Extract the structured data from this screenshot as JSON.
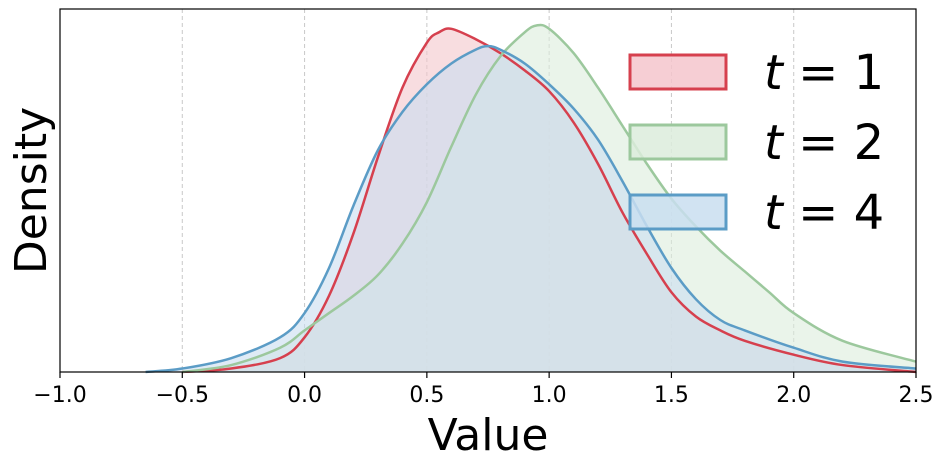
{
  "chart_data": {
    "type": "area",
    "title": "",
    "xlabel": "Value",
    "ylabel": "Density",
    "xlim": [
      -1.0,
      2.5
    ],
    "ylim": [
      0,
      1
    ],
    "x_ticks": [
      -1.0,
      -0.5,
      0.0,
      0.5,
      1.0,
      1.5,
      2.0,
      2.5
    ],
    "x_tick_labels": [
      "−1.0",
      "−0.5",
      "0.0",
      "0.5",
      "1.0",
      "1.5",
      "2.0",
      "2.5"
    ],
    "y_ticks_shown": false,
    "grid": "vertical dashed",
    "legend_position": "upper-right",
    "series": [
      {
        "name": "t = 1",
        "legend_var": "t",
        "legend_val": "1",
        "color": "#d6404e",
        "fill": "#f4c6cc",
        "x": [
          -0.5,
          -0.3,
          -0.1,
          0.0,
          0.1,
          0.2,
          0.3,
          0.4,
          0.5,
          0.55,
          0.6,
          0.7,
          0.8,
          0.9,
          1.0,
          1.1,
          1.2,
          1.3,
          1.4,
          1.5,
          1.6,
          1.7,
          1.8,
          2.0,
          2.2,
          2.5
        ],
        "y": [
          0.0,
          0.01,
          0.04,
          0.1,
          0.22,
          0.4,
          0.62,
          0.82,
          0.95,
          0.98,
          0.99,
          0.96,
          0.92,
          0.87,
          0.81,
          0.72,
          0.6,
          0.46,
          0.34,
          0.23,
          0.16,
          0.12,
          0.09,
          0.05,
          0.02,
          0.0
        ]
      },
      {
        "name": "t = 2",
        "legend_var": "t",
        "legend_val": "2",
        "color": "#9cc89d",
        "fill": "#dcecdc",
        "x": [
          -0.5,
          -0.3,
          -0.1,
          0.0,
          0.1,
          0.2,
          0.3,
          0.4,
          0.5,
          0.6,
          0.7,
          0.8,
          0.9,
          0.95,
          1.0,
          1.1,
          1.2,
          1.3,
          1.4,
          1.5,
          1.6,
          1.7,
          1.8,
          1.9,
          2.0,
          2.2,
          2.5
        ],
        "y": [
          0.0,
          0.02,
          0.07,
          0.12,
          0.17,
          0.22,
          0.28,
          0.37,
          0.49,
          0.65,
          0.8,
          0.91,
          0.98,
          1.0,
          0.99,
          0.92,
          0.82,
          0.71,
          0.6,
          0.5,
          0.42,
          0.35,
          0.29,
          0.23,
          0.17,
          0.09,
          0.03
        ]
      },
      {
        "name": "t = 4",
        "legend_var": "t",
        "legend_val": "4",
        "color": "#5b9cc6",
        "fill": "#c9def0",
        "x": [
          -0.65,
          -0.5,
          -0.3,
          -0.1,
          0.0,
          0.1,
          0.2,
          0.3,
          0.4,
          0.5,
          0.6,
          0.7,
          0.75,
          0.8,
          0.9,
          1.0,
          1.1,
          1.2,
          1.3,
          1.4,
          1.5,
          1.6,
          1.7,
          1.8,
          2.0,
          2.2,
          2.5
        ],
        "y": [
          0.0,
          0.01,
          0.04,
          0.1,
          0.17,
          0.3,
          0.48,
          0.64,
          0.75,
          0.83,
          0.89,
          0.93,
          0.94,
          0.93,
          0.89,
          0.83,
          0.76,
          0.67,
          0.55,
          0.42,
          0.3,
          0.21,
          0.15,
          0.12,
          0.07,
          0.03,
          0.01
        ]
      }
    ]
  }
}
